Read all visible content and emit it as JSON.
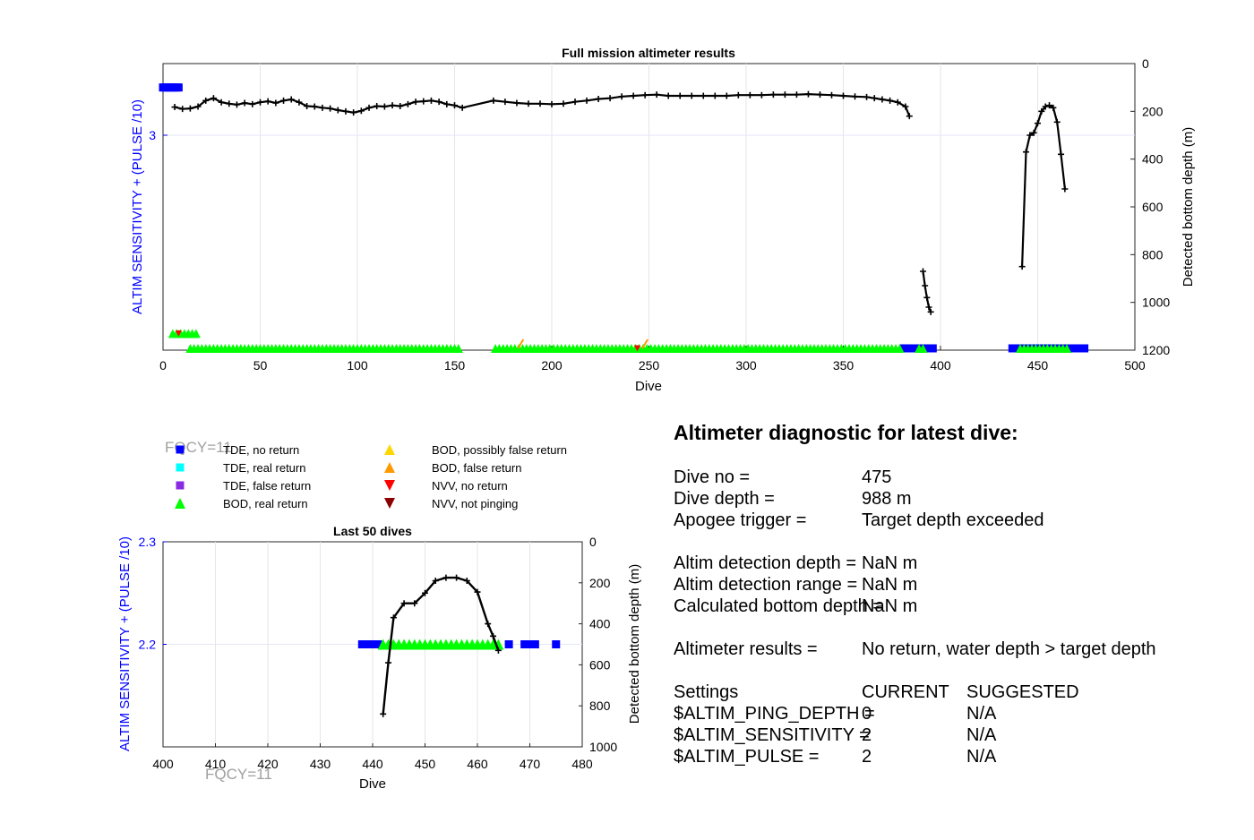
{
  "chart_data": [
    {
      "type": "scatter",
      "title": "Full mission altimeter results",
      "xlabel": "Dive",
      "ylabel_left": "ALTIM SENSITIVITY + (PULSE /10)",
      "ylabel_right": "Detected bottom depth (m)",
      "xlim": [
        0,
        500
      ],
      "ylim_left": [
        2.1,
        3.3
      ],
      "ylim_right": [
        0,
        1200
      ],
      "x_ticks": [
        "0",
        "50",
        "100",
        "150",
        "200",
        "250",
        "300",
        "350",
        "400",
        "450",
        "500"
      ],
      "y_left_ticks": [
        "3"
      ],
      "y_right_ticks": [
        "0",
        "200",
        "400",
        "600",
        "800",
        "1000",
        "1200"
      ],
      "grid": true,
      "bottom_depth_segments": [
        [
          [
            6,
            182
          ],
          [
            10,
            190
          ],
          [
            14,
            188
          ],
          [
            18,
            180
          ],
          [
            22,
            155
          ],
          [
            26,
            145
          ],
          [
            30,
            162
          ],
          [
            34,
            168
          ],
          [
            38,
            172
          ],
          [
            42,
            165
          ],
          [
            46,
            170
          ],
          [
            50,
            162
          ],
          [
            54,
            158
          ],
          [
            58,
            165
          ],
          [
            62,
            155
          ],
          [
            66,
            150
          ],
          [
            70,
            162
          ],
          [
            74,
            178
          ],
          [
            78,
            180
          ],
          [
            82,
            185
          ],
          [
            86,
            188
          ],
          [
            90,
            195
          ],
          [
            94,
            200
          ],
          [
            98,
            205
          ],
          [
            102,
            198
          ],
          [
            106,
            185
          ],
          [
            110,
            178
          ],
          [
            114,
            180
          ],
          [
            118,
            175
          ],
          [
            122,
            178
          ],
          [
            126,
            170
          ],
          [
            130,
            160
          ],
          [
            134,
            158
          ],
          [
            138,
            155
          ],
          [
            142,
            160
          ],
          [
            146,
            170
          ],
          [
            150,
            175
          ],
          [
            154,
            185
          ],
          [
            170,
            155
          ],
          [
            176,
            160
          ],
          [
            182,
            165
          ],
          [
            188,
            168
          ],
          [
            194,
            168
          ],
          [
            200,
            170
          ],
          [
            206,
            168
          ],
          [
            212,
            160
          ],
          [
            218,
            155
          ],
          [
            224,
            148
          ],
          [
            230,
            145
          ],
          [
            236,
            138
          ],
          [
            242,
            135
          ],
          [
            248,
            132
          ],
          [
            254,
            130
          ],
          [
            260,
            135
          ],
          [
            266,
            135
          ],
          [
            272,
            135
          ],
          [
            278,
            135
          ],
          [
            284,
            135
          ],
          [
            290,
            135
          ],
          [
            296,
            132
          ],
          [
            302,
            132
          ],
          [
            308,
            132
          ],
          [
            314,
            130
          ],
          [
            320,
            130
          ],
          [
            326,
            130
          ],
          [
            332,
            128
          ],
          [
            338,
            130
          ],
          [
            344,
            132
          ],
          [
            350,
            135
          ],
          [
            356,
            138
          ],
          [
            362,
            140
          ],
          [
            366,
            145
          ],
          [
            370,
            150
          ],
          [
            374,
            155
          ],
          [
            378,
            162
          ],
          [
            382,
            180
          ],
          [
            384,
            220
          ]
        ],
        [
          [
            391,
            870
          ],
          [
            392,
            930
          ],
          [
            393,
            980
          ],
          [
            394,
            1020
          ],
          [
            395,
            1040
          ]
        ],
        [
          [
            442,
            850
          ],
          [
            444,
            370
          ],
          [
            446,
            300
          ],
          [
            448,
            290
          ],
          [
            450,
            250
          ],
          [
            452,
            200
          ],
          [
            454,
            180
          ],
          [
            456,
            175
          ],
          [
            458,
            185
          ],
          [
            460,
            245
          ],
          [
            462,
            380
          ],
          [
            464,
            525
          ]
        ]
      ],
      "tde_no_return_ranges": [
        [
          0,
          8
        ],
        [
          381,
          396
        ],
        [
          437,
          474
        ]
      ],
      "bod_real_return_ranges": [
        [
          5,
          17
        ],
        [
          14,
          153
        ],
        [
          171,
          380
        ],
        [
          389,
          392
        ],
        [
          441,
          465
        ]
      ],
      "bod_false_return_x": [
        184,
        248
      ],
      "nvv_no_return_x": [
        8,
        244
      ],
      "tde_level": 3.2,
      "bod_level_upper": 2.17,
      "bod_level_lower": 2.1
    },
    {
      "type": "scatter",
      "title": "Last 50 dives",
      "xlabel": "Dive",
      "ylabel_left": "ALTIM SENSITIVITY + (PULSE /10)",
      "ylabel_right": "Detected bottom depth (m)",
      "xlim": [
        400,
        480
      ],
      "ylim_left": [
        2.1,
        2.3
      ],
      "ylim_right": [
        0,
        1000
      ],
      "x_ticks": [
        "400",
        "410",
        "420",
        "430",
        "440",
        "450",
        "460",
        "470",
        "480"
      ],
      "y_left_ticks": [
        "2.3",
        "2.2"
      ],
      "y_right_ticks": [
        "0",
        "200",
        "400",
        "600",
        "800",
        "1000"
      ],
      "grid": true,
      "bottom_depth": [
        [
          442,
          840
        ],
        [
          443,
          590
        ],
        [
          444,
          370
        ],
        [
          446,
          300
        ],
        [
          448,
          300
        ],
        [
          450,
          250
        ],
        [
          452,
          190
        ],
        [
          454,
          175
        ],
        [
          456,
          175
        ],
        [
          458,
          190
        ],
        [
          460,
          245
        ],
        [
          462,
          400
        ],
        [
          463,
          460
        ],
        [
          464,
          530
        ]
      ],
      "tde_no_return_x": [
        438,
        439,
        440,
        441,
        466,
        469,
        470,
        471,
        475
      ],
      "bod_real_return_x": [
        442,
        443,
        444,
        445,
        446,
        447,
        448,
        449,
        450,
        451,
        452,
        453,
        454,
        455,
        456,
        457,
        458,
        459,
        460,
        461,
        462,
        463,
        464
      ],
      "level": 2.2
    }
  ],
  "legend": [
    {
      "label": "TDE, no return",
      "marker": "square",
      "color": "#0000ff"
    },
    {
      "label": "TDE, real return",
      "marker": "square",
      "color": "#00ffff"
    },
    {
      "label": "TDE, false return",
      "marker": "square",
      "color": "#8a2be2"
    },
    {
      "label": "BOD, real return",
      "marker": "triangle-up",
      "color": "#00ff00"
    },
    {
      "label": "BOD, possibly false return",
      "marker": "triangle-up",
      "color": "#ffd700"
    },
    {
      "label": "BOD, false return",
      "marker": "triangle-up",
      "color": "#ff9900"
    },
    {
      "label": "NVV, no return",
      "marker": "triangle-down",
      "color": "#ff0000"
    },
    {
      "label": "NVV, not pinging",
      "marker": "triangle-down",
      "color": "#8b0000"
    }
  ],
  "fqcy_label": "FQCY=11",
  "colors": {
    "blue_axis": "#0000ff",
    "black": "#000000",
    "grid": "#e6e6e6"
  },
  "diagnostic": {
    "title": "Altimeter diagnostic for latest dive:",
    "dive_no_label": "Dive no =",
    "dive_no_value": "475",
    "dive_depth_label": "Dive depth =",
    "dive_depth_value": "988 m",
    "apogee_label": "Apogee trigger =",
    "apogee_value": "Target depth exceeded",
    "detect_depth_label": "Altim detection depth =",
    "detect_depth_value": "NaN m",
    "detect_range_label": "Altim detection range =",
    "detect_range_value": "NaN m",
    "calc_bottom_label": "Calculated bottom depth =",
    "calc_bottom_value": "NaN m",
    "results_label": "Altimeter results =",
    "results_value": "No return, water depth > target depth",
    "settings_label": "Settings",
    "current_label": "CURRENT",
    "suggested_label": "SUGGESTED",
    "ping_depth_label": "$ALTIM_PING_DEPTH =",
    "ping_depth_current": "0",
    "ping_depth_suggested": "N/A",
    "sensitivity_label": "$ALTIM_SENSITIVITY =",
    "sensitivity_current": "2",
    "sensitivity_suggested": "N/A",
    "pulse_label": "$ALTIM_PULSE =",
    "pulse_current": "2",
    "pulse_suggested": "N/A"
  }
}
